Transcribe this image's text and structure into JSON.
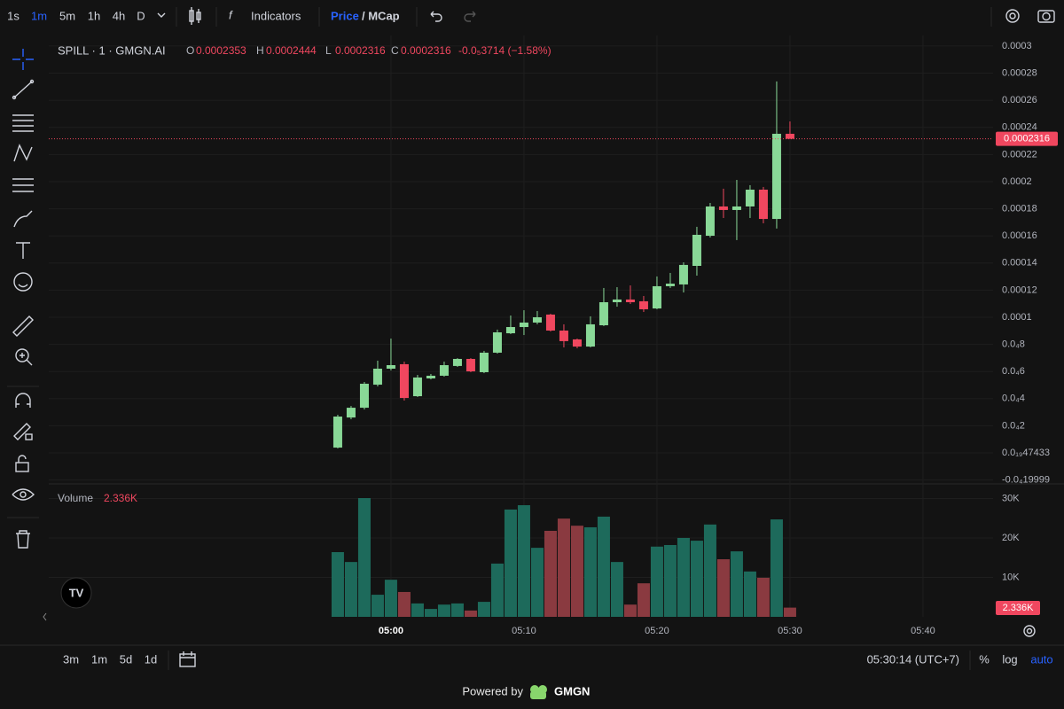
{
  "toolbar": {
    "intervals": [
      "1s",
      "1m",
      "5m",
      "1h",
      "4h",
      "D"
    ],
    "indicators": "Indicators",
    "price": "Price",
    "mcap": "/ MCap"
  },
  "chart_data": {
    "type": "candlestick",
    "title": "SPILL · 1 · GMGN.AI",
    "legend_keys": [
      "O",
      "H",
      "L",
      "C"
    ],
    "change": "-0.0₅3714 (−1.58%)",
    "up_color": "#89d897",
    "down_color": "#f0475f",
    "grid": true,
    "xlim": [
      -21.73,
      49.27
    ],
    "xticks": [
      {
        "value": 4,
        "label": "05:00"
      },
      {
        "value": 14,
        "label": "05:10"
      },
      {
        "value": 24,
        "label": "05:20"
      },
      {
        "value": 34,
        "label": "05:30"
      },
      {
        "value": 44,
        "label": "05:40"
      }
    ],
    "ylim": [
      -2.22e-05,
      0.0003078
    ],
    "yticks": [
      0.0003,
      0.00028,
      0.00026,
      0.00024,
      0.00022,
      0.0002,
      0.00018,
      0.00016,
      0.00014,
      0.00012,
      0.0001,
      {
        "value": 8e-05,
        "label": "0.0₄8"
      },
      {
        "value": 6e-05,
        "label": "0.0₄6"
      },
      {
        "value": 4e-05,
        "label": "0.0₄4"
      },
      {
        "value": 2e-05,
        "label": "0.0₄2"
      },
      {
        "value": 4.7433e-20,
        "label": "0.0₁₉47433"
      },
      {
        "value": -1.9999e-05,
        "label": "-0.0₄19999"
      }
    ],
    "open": [
      3.9e-06,
      2.61e-05,
      3.33e-05,
      5.03e-05,
      6.21e-05,
      6.54e-05,
      4.18e-05,
      5.49e-05,
      5.69e-05,
      6.41e-05,
      6.93e-05,
      5.95e-05,
      7.39e-05,
      8.82e-05,
      9.28e-05,
      9.61e-05,
      0.000102,
      9.02e-05,
      8.37e-05,
      7.84e-05,
      9.41e-05,
      0.0001111,
      0.0001131,
      0.0001118,
      0.0001065,
      0.0001229,
      0.0001242,
      0.0001379,
      0.0001601,
      0.0001817,
      0.0001791,
      0.0001817,
      0.0001941,
      0.0001725,
      0.0002353
    ],
    "high": [
      2.81e-05,
      3.46e-05,
      5.23e-05,
      6.8e-05,
      8.43e-05,
      6.73e-05,
      5.75e-05,
      5.82e-05,
      6.73e-05,
      6.99e-05,
      6.99e-05,
      7.52e-05,
      9.09e-05,
      0.0001013,
      0.0001052,
      0.0001046,
      0.0001026,
      9.48e-05,
      8.43e-05,
      0.0001007,
      0.0001216,
      0.0001222,
      0.0001235,
      0.0001157,
      0.0001301,
      0.0001327,
      0.0001405,
      0.0001667,
      0.0001843,
      0.0001948,
      0.0002013,
      0.0001974,
      0.0001961,
      0.0002739,
      0.0002444
    ],
    "low": [
      3.3e-06,
      2.48e-05,
      3.2e-05,
      4.9e-05,
      6.08e-05,
      3.86e-05,
      4.12e-05,
      5.42e-05,
      5.62e-05,
      6.34e-05,
      5.95e-05,
      5.88e-05,
      7.32e-05,
      8.76e-05,
      8.69e-05,
      9.48e-05,
      8.95e-05,
      7.78e-05,
      7.71e-05,
      7.78e-05,
      9.35e-05,
      0.0001078,
      0.0001098,
      0.0001039,
      0.0001059,
      0.0001216,
      0.0001183,
      0.0001307,
      0.0001588,
      0.0001732,
      0.0001569,
      0.0001732,
      0.0001693,
      0.0001654,
      0.0002316
    ],
    "close": [
      2.68e-05,
      3.33e-05,
      5.1e-05,
      6.21e-05,
      6.47e-05,
      4.05e-05,
      5.56e-05,
      5.69e-05,
      6.47e-05,
      6.93e-05,
      6.01e-05,
      7.39e-05,
      8.89e-05,
      9.28e-05,
      9.61e-05,
      0.0001,
      9.02e-05,
      8.24e-05,
      7.84e-05,
      9.48e-05,
      0.0001111,
      0.0001131,
      0.0001111,
      0.0001059,
      0.0001229,
      0.0001248,
      0.0001386,
      0.0001608,
      0.0001817,
      0.0001791,
      0.0001817,
      0.0001941,
      0.0001725,
      0.0002353,
      0.0002316
    ],
    "volume": {
      "name": "Volume",
      "up_color": "#1d6a5b",
      "down_color": "#8a3a40",
      "values": [
        16400,
        13900,
        30100,
        5600,
        9400,
        6300,
        3400,
        2000,
        3100,
        3400,
        1600,
        3800,
        13500,
        27200,
        28300,
        17500,
        21800,
        24900,
        23100,
        22700,
        25400,
        13900,
        3100,
        8500,
        17800,
        18200,
        20000,
        19300,
        23400,
        14600,
        16600,
        11500,
        9900,
        24700,
        2336
      ],
      "value_labels": [
        null,
        null,
        null,
        null,
        null,
        null,
        null,
        null,
        null,
        null,
        null,
        null,
        null,
        null,
        null,
        null,
        null,
        null,
        null,
        null,
        null,
        null,
        null,
        null,
        null,
        null,
        null,
        null,
        null,
        null,
        null,
        null,
        null,
        null,
        "2.336K"
      ],
      "ylim": [
        0,
        32800
      ],
      "yticks": [
        {
          "value": 30000,
          "label": "30K"
        },
        {
          "value": 20000,
          "label": "20K"
        },
        {
          "value": 10000,
          "label": "10K"
        }
      ]
    }
  },
  "bottom_bar": {
    "ranges": [
      "3m",
      "1m",
      "5d",
      "1d"
    ],
    "clock": "05:30:14 (UTC+7)",
    "percent": "%",
    "log": "log",
    "auto": "auto"
  },
  "footer": {
    "powered_by": "Powered by",
    "brand": "GMGN"
  }
}
